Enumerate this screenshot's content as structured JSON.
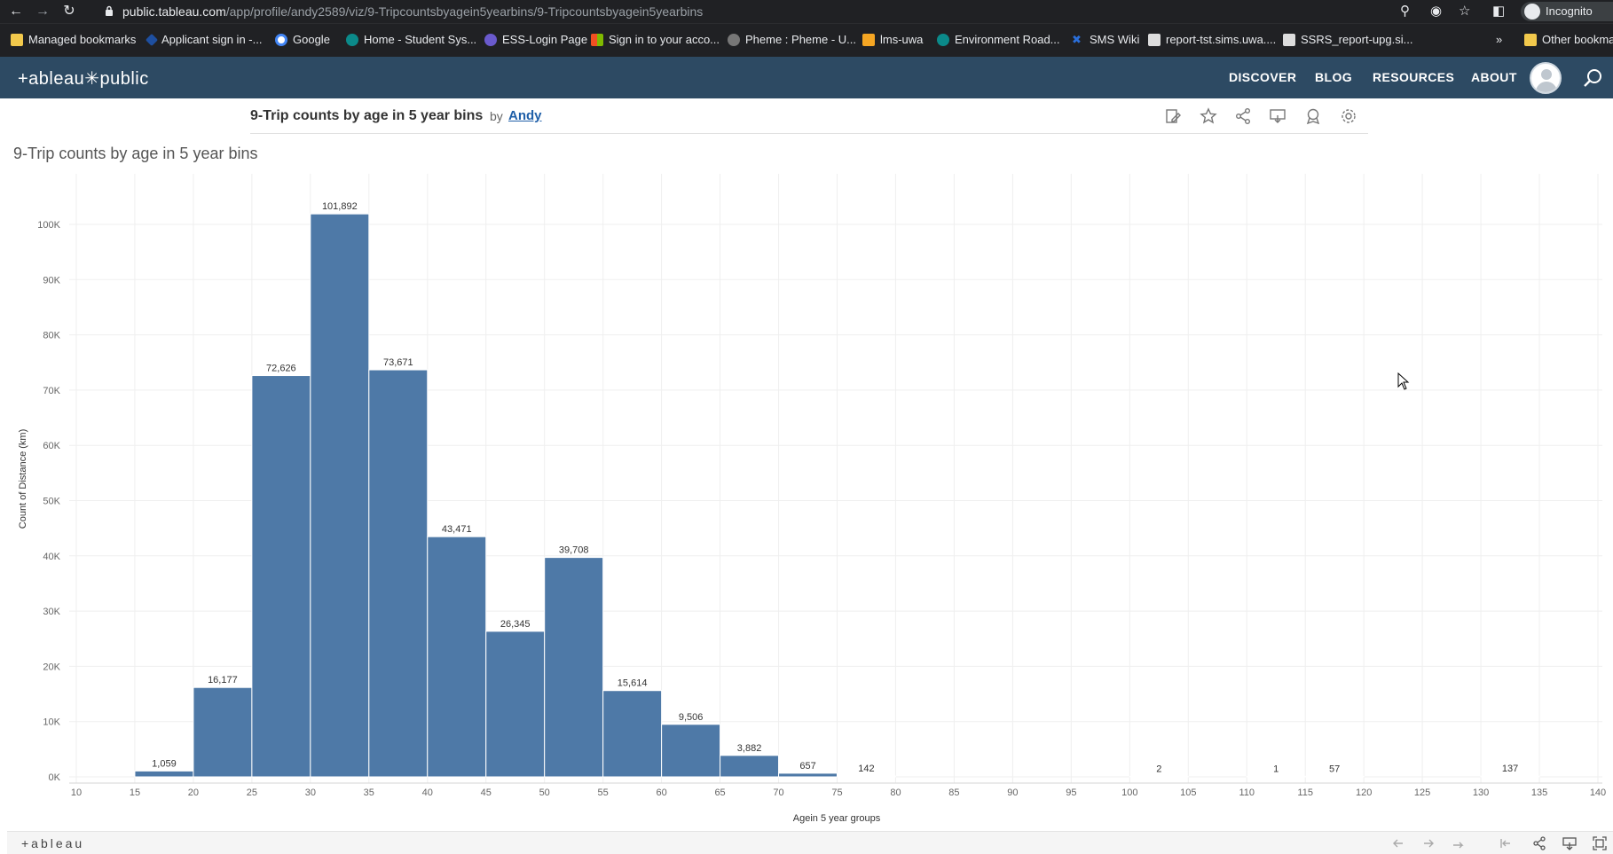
{
  "browser": {
    "url_host": "public.tableau.com",
    "url_path": "/app/profile/andy2589/viz/9-Tripcountsbyagein5yearbins/9-Tripcountsbyagein5yearbins",
    "incognito_label": "Incognito",
    "bookmarks": [
      {
        "label": "Managed bookmarks",
        "icon": "folder-icon",
        "color": "#f2c94c"
      },
      {
        "label": "Applicant sign in -...",
        "icon": "diamond-icon",
        "color": "#1e4fa0"
      },
      {
        "label": "Google",
        "icon": "google-icon",
        "color": "#4285f4"
      },
      {
        "label": "Home - Student Sys...",
        "icon": "sharepoint-icon",
        "color": "#0b8a8a"
      },
      {
        "label": "ESS-Login Page",
        "icon": "seal-icon",
        "color": "#6a5acd"
      },
      {
        "label": "Sign in to your acco...",
        "icon": "microsoft-icon",
        "color": "#f25022"
      },
      {
        "label": "Pheme : Pheme - U...",
        "icon": "globe-icon",
        "color": "#777777"
      },
      {
        "label": "lms-uwa",
        "icon": "pencil-icon",
        "color": "#f5a623"
      },
      {
        "label": "Environment Road...",
        "icon": "sharepoint-icon",
        "color": "#0b8a8a"
      },
      {
        "label": "SMS Wiki",
        "icon": "cross-icon",
        "color": "#2a6fdb"
      },
      {
        "label": "report-tst.sims.uwa....",
        "icon": "report-icon",
        "color": "#dddddd"
      },
      {
        "label": "SSRS_report-upg.si...",
        "icon": "report-icon",
        "color": "#dddddd"
      }
    ],
    "more_label": "»",
    "other_bookmarks_label": "Other bookma"
  },
  "header": {
    "logo": "+ableau✳public",
    "nav": [
      "DISCOVER",
      "BLOG",
      "RESOURCES",
      "ABOUT"
    ]
  },
  "viz": {
    "title": "9-Trip counts by age in 5 year bins",
    "by": "by",
    "author": "Andy",
    "sheet_title": "9-Trip counts by age in 5 year bins",
    "toolbar_icons": [
      "edit-icon",
      "star-icon",
      "share-icon",
      "download-icon",
      "badge-icon",
      "settings-icon"
    ]
  },
  "chart_data": {
    "type": "bar",
    "title": "9-Trip counts by age in 5 year bins",
    "xlabel": "Agein 5 year groups",
    "ylabel": "Count of Distance (km)",
    "x_ticks": [
      10,
      15,
      20,
      25,
      30,
      35,
      40,
      45,
      50,
      55,
      60,
      65,
      70,
      75,
      80,
      85,
      90,
      95,
      100,
      105,
      110,
      115,
      120,
      125,
      130,
      135,
      140
    ],
    "xlim": [
      10,
      140
    ],
    "y_ticks": [
      "0K",
      "10K",
      "20K",
      "30K",
      "40K",
      "50K",
      "60K",
      "70K",
      "80K",
      "90K",
      "100K"
    ],
    "ylim": [
      0,
      100000
    ],
    "bar_color": "#4e79a7",
    "bins": [
      {
        "x": 15,
        "value": 1059,
        "label": "1,059"
      },
      {
        "x": 20,
        "value": 16177,
        "label": "16,177"
      },
      {
        "x": 25,
        "value": 72626,
        "label": "72,626"
      },
      {
        "x": 30,
        "value": 101892,
        "label": "101,892"
      },
      {
        "x": 35,
        "value": 73671,
        "label": "73,671"
      },
      {
        "x": 40,
        "value": 43471,
        "label": "43,471"
      },
      {
        "x": 45,
        "value": 26345,
        "label": "26,345"
      },
      {
        "x": 50,
        "value": 39708,
        "label": "39,708"
      },
      {
        "x": 55,
        "value": 15614,
        "label": "15,614"
      },
      {
        "x": 60,
        "value": 9506,
        "label": "9,506"
      },
      {
        "x": 65,
        "value": 3882,
        "label": "3,882"
      },
      {
        "x": 70,
        "value": 657,
        "label": "657"
      },
      {
        "x": 75,
        "value": 142,
        "label": "142"
      },
      {
        "x": 100,
        "value": 2,
        "label": "2"
      },
      {
        "x": 110,
        "value": 1,
        "label": "1"
      },
      {
        "x": 115,
        "value": 57,
        "label": "57"
      },
      {
        "x": 130,
        "value": 137,
        "label": "137"
      }
    ],
    "grid": true
  },
  "footer": {
    "brand": "+ableau"
  }
}
